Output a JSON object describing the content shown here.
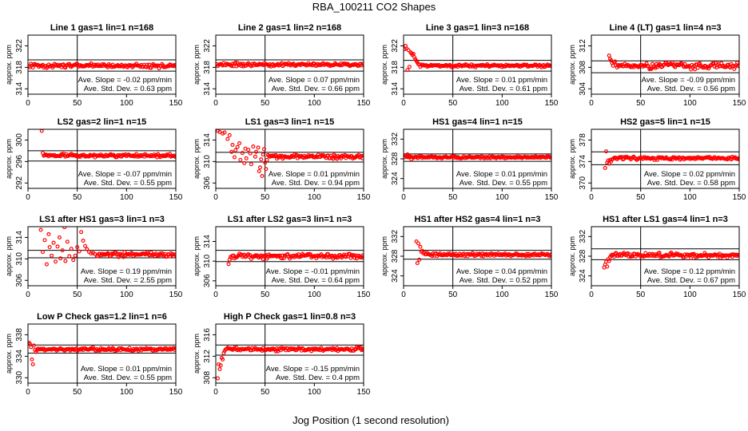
{
  "figure": {
    "title": "RBA_100211  CO2 Shapes",
    "xlabel": "Jog Position (1 second resolution)",
    "ylabel": "approx. ppm",
    "slope_label": "Ave. Slope =",
    "slope_unit": "ppm/min",
    "sd_label": "Ave. Std. Dev. =",
    "sd_unit": "ppm",
    "colors": {
      "points": "#ff0000",
      "axes": "#000000",
      "background": "#ffffff"
    }
  },
  "chart_data": [
    {
      "type": "scatter",
      "title": "Line 1 gas=1 lin=1 n=168",
      "xlim": [
        0,
        150
      ],
      "xticks": [
        0,
        50,
        100,
        150
      ],
      "ylim": [
        313,
        324
      ],
      "yticks": [
        314,
        318,
        322
      ],
      "hlines": [
        319.4,
        317.3
      ],
      "vline": 50,
      "series": {
        "name": "CO2",
        "baseline": 318.3,
        "noise": 0.28,
        "start_x": 1,
        "end_x": 150,
        "early": []
      },
      "slope": "-0.02",
      "sd": "0.63"
    },
    {
      "type": "scatter",
      "title": "Line 2 gas=1 lin=2 n=168",
      "xlim": [
        0,
        150
      ],
      "xticks": [
        0,
        50,
        100,
        150
      ],
      "ylim": [
        313,
        324
      ],
      "yticks": [
        314,
        318,
        322
      ],
      "hlines": [
        319.4,
        317.3
      ],
      "vline": 50,
      "series": {
        "name": "CO2",
        "baseline": 318.5,
        "noise": 0.25,
        "start_x": 1,
        "end_x": 150,
        "early": []
      },
      "slope": "0.07",
      "sd": "0.66"
    },
    {
      "type": "scatter",
      "title": "Line 3 gas=1 lin=3 n=168",
      "xlim": [
        0,
        150
      ],
      "xticks": [
        0,
        50,
        100,
        150
      ],
      "ylim": [
        313,
        324
      ],
      "yticks": [
        314,
        318,
        322
      ],
      "hlines": [
        319.3,
        317.3
      ],
      "vline": 50,
      "series": {
        "name": "CO2",
        "baseline": 318.3,
        "noise": 0.2,
        "start_x": 16,
        "end_x": 150,
        "early": [
          [
            1,
            321.4
          ],
          [
            2,
            322.0
          ],
          [
            3,
            321.5
          ],
          [
            4,
            317.5
          ],
          [
            5,
            321.2
          ],
          [
            6,
            318.1
          ],
          [
            7,
            320.8
          ],
          [
            8,
            320.6
          ],
          [
            9,
            320.3
          ],
          [
            10,
            320.5
          ],
          [
            11,
            319.9
          ],
          [
            12,
            319.5
          ],
          [
            13,
            319.2
          ],
          [
            14,
            318.9
          ],
          [
            15,
            318.6
          ]
        ]
      },
      "slope": "0.01",
      "sd": "0.61"
    },
    {
      "type": "scatter",
      "title": "Line 4 (LT) gas=1 lin=4 n=3",
      "xlim": [
        0,
        150
      ],
      "xticks": [
        0,
        50,
        100,
        150
      ],
      "ylim": [
        303,
        314
      ],
      "yticks": [
        304,
        308,
        312
      ],
      "hlines": [
        309.2,
        307.0
      ],
      "vline": 50,
      "series": {
        "name": "CO2",
        "baseline": 308.3,
        "noise": 0.4,
        "start_x": 26,
        "end_x": 150,
        "early": [
          [
            18,
            310.2
          ],
          [
            19,
            309.6
          ],
          [
            20,
            309.3
          ],
          [
            21,
            308.8
          ],
          [
            22,
            308.3
          ],
          [
            23,
            308.9
          ],
          [
            24,
            309.1
          ],
          [
            25,
            308.4
          ]
        ]
      },
      "slope": "-0.09",
      "sd": "0.56"
    },
    {
      "type": "scatter",
      "title": "LS2 gas=2 lin=1 n=15",
      "xlim": [
        0,
        150
      ],
      "xticks": [
        0,
        50,
        100,
        150
      ],
      "ylim": [
        291,
        302
      ],
      "yticks": [
        292,
        296,
        300
      ],
      "hlines": [
        298.0,
        296.1
      ],
      "vline": 50,
      "series": {
        "name": "CO2",
        "baseline": 297.1,
        "noise": 0.22,
        "start_x": 16,
        "end_x": 150,
        "early": [
          [
            14,
            301.7
          ],
          [
            15,
            297.6
          ]
        ]
      },
      "slope": "-0.07",
      "sd": "0.55"
    },
    {
      "type": "scatter",
      "title": "LS1 gas=3 lin=1 n=15",
      "xlim": [
        0,
        150
      ],
      "xticks": [
        0,
        50,
        100,
        150
      ],
      "ylim": [
        305,
        316
      ],
      "yticks": [
        306,
        310,
        314
      ],
      "hlines": [
        311.7,
        309.9
      ],
      "vline": 50,
      "series": {
        "name": "CO2",
        "baseline": 310.9,
        "noise": 0.28,
        "start_x": 56,
        "end_x": 150,
        "early": [
          [
            2,
            315.7
          ],
          [
            4,
            315.5
          ],
          [
            7,
            315.2
          ],
          [
            9,
            315.4
          ],
          [
            12,
            314.2
          ],
          [
            14,
            314.9
          ],
          [
            16,
            311.8
          ],
          [
            17,
            313.1
          ],
          [
            19,
            310.8
          ],
          [
            20,
            312.1
          ],
          [
            22,
            312.7
          ],
          [
            24,
            313.4
          ],
          [
            25,
            310.3
          ],
          [
            27,
            311.6
          ],
          [
            29,
            309.7
          ],
          [
            30,
            312.4
          ],
          [
            31,
            310.6
          ],
          [
            33,
            312.2
          ],
          [
            35,
            311.5
          ],
          [
            36,
            309.5
          ],
          [
            38,
            312.8
          ],
          [
            40,
            310.9
          ],
          [
            41,
            311.8
          ],
          [
            43,
            312.6
          ],
          [
            44,
            308.2
          ],
          [
            45,
            308.9
          ],
          [
            46,
            310.4
          ],
          [
            47,
            307.3
          ],
          [
            48,
            311.3
          ],
          [
            49,
            312.3
          ],
          [
            50,
            309.8
          ],
          [
            51,
            308.6
          ],
          [
            52,
            310.3
          ],
          [
            53,
            311.2
          ],
          [
            54,
            311.0
          ],
          [
            55,
            310.9
          ]
        ]
      },
      "slope": "0.01",
      "sd": "0.94"
    },
    {
      "type": "scatter",
      "title": "HS1 gas=4 lin=1 n=15",
      "xlim": [
        0,
        150
      ],
      "xticks": [
        0,
        50,
        100,
        150
      ],
      "ylim": [
        322,
        334
      ],
      "yticks": [
        324,
        328,
        332
      ],
      "hlines": [
        329.0,
        327.5
      ],
      "vline": 50,
      "series": {
        "name": "CO2",
        "baseline": 328.3,
        "noise": 0.18,
        "start_x": 1,
        "end_x": 150,
        "early": [
          [
            2,
            328.7
          ],
          [
            4,
            328.9
          ],
          [
            6,
            328.6
          ],
          [
            8,
            327.9
          ]
        ]
      },
      "slope": "0.01",
      "sd": "0.55"
    },
    {
      "type": "scatter",
      "title": "HS2 gas=5 lin=1 n=15",
      "xlim": [
        0,
        150
      ],
      "xticks": [
        0,
        50,
        100,
        150
      ],
      "ylim": [
        369,
        380
      ],
      "yticks": [
        370,
        374,
        378
      ],
      "hlines": [
        375.8,
        373.4
      ],
      "vline": 50,
      "series": {
        "name": "CO2",
        "baseline": 374.6,
        "noise": 0.22,
        "start_x": 22,
        "end_x": 150,
        "early": [
          [
            14,
            372.8
          ],
          [
            15,
            375.9
          ],
          [
            16,
            373.8
          ],
          [
            17,
            374.2
          ],
          [
            18,
            373.6
          ],
          [
            19,
            374.3
          ],
          [
            20,
            374.0
          ],
          [
            21,
            374.4
          ]
        ]
      },
      "slope": "0.02",
      "sd": "0.58"
    },
    {
      "type": "scatter",
      "title": "LS1 after HS1 gas=3 lin=1 n=3",
      "xlim": [
        0,
        150
      ],
      "xticks": [
        0,
        50,
        100,
        150
      ],
      "ylim": [
        305,
        316
      ],
      "yticks": [
        306,
        310,
        314
      ],
      "hlines": [
        311.6,
        310.2
      ],
      "vline": 50,
      "series": {
        "name": "CO2",
        "baseline": 310.8,
        "noise": 0.3,
        "start_x": 70,
        "end_x": 150,
        "early": [
          [
            13,
            315.4
          ],
          [
            15,
            311.3
          ],
          [
            17,
            313.5
          ],
          [
            19,
            309.0
          ],
          [
            21,
            314.6
          ],
          [
            22,
            312.2
          ],
          [
            24,
            310.6
          ],
          [
            26,
            313.0
          ],
          [
            28,
            309.5
          ],
          [
            30,
            312.3
          ],
          [
            32,
            314.0
          ],
          [
            33,
            310.1
          ],
          [
            35,
            311.6
          ],
          [
            37,
            315.9
          ],
          [
            38,
            309.6
          ],
          [
            40,
            313.2
          ],
          [
            42,
            310.5
          ],
          [
            44,
            311.9
          ],
          [
            46,
            309.8
          ],
          [
            48,
            310.6
          ],
          [
            50,
            312.2
          ],
          [
            52,
            311.4
          ],
          [
            54,
            315.0
          ],
          [
            56,
            313.4
          ],
          [
            58,
            312.4
          ],
          [
            60,
            311.8
          ],
          [
            62,
            311.3
          ],
          [
            64,
            311.0
          ],
          [
            66,
            311.1
          ],
          [
            68,
            310.9
          ]
        ]
      },
      "slope": "0.19",
      "sd": "2.55"
    },
    {
      "type": "scatter",
      "title": "LS1 after LS2 gas=3 lin=1 n=3",
      "xlim": [
        0,
        150
      ],
      "xticks": [
        0,
        50,
        100,
        150
      ],
      "ylim": [
        305,
        317
      ],
      "yticks": [
        306,
        310,
        314
      ],
      "hlines": [
        312.2,
        309.9
      ],
      "vline": 50,
      "series": {
        "name": "CO2",
        "baseline": 311.0,
        "noise": 0.35,
        "start_x": 15,
        "end_x": 150,
        "early": [
          [
            13,
            309.4
          ],
          [
            14,
            310.3
          ]
        ]
      },
      "slope": "-0.01",
      "sd": "0.64"
    },
    {
      "type": "scatter",
      "title": "HS1 after HS2 gas=4 lin=1 n=3",
      "xlim": [
        0,
        150
      ],
      "xticks": [
        0,
        50,
        100,
        150
      ],
      "ylim": [
        322,
        334
      ],
      "yticks": [
        324,
        328,
        332
      ],
      "hlines": [
        329.2,
        327.4
      ],
      "vline": 50,
      "series": {
        "name": "CO2",
        "baseline": 328.3,
        "noise": 0.25,
        "start_x": 22,
        "end_x": 150,
        "early": [
          [
            13,
            331.0
          ],
          [
            14,
            326.6
          ],
          [
            15,
            330.6
          ],
          [
            16,
            327.3
          ],
          [
            17,
            329.9
          ],
          [
            18,
            328.9
          ],
          [
            19,
            329.1
          ],
          [
            20,
            328.6
          ],
          [
            21,
            328.8
          ]
        ]
      },
      "slope": "0.04",
      "sd": "0.52"
    },
    {
      "type": "scatter",
      "title": "HS1 after LS1 gas=4 lin=1 n=3",
      "xlim": [
        0,
        150
      ],
      "xticks": [
        0,
        50,
        100,
        150
      ],
      "ylim": [
        322,
        334
      ],
      "yticks": [
        324,
        328,
        332
      ],
      "hlines": [
        329.5,
        327.3
      ],
      "vline": 50,
      "series": {
        "name": "CO2",
        "baseline": 328.2,
        "noise": 0.35,
        "start_x": 20,
        "end_x": 150,
        "early": [
          [
            13,
            325.7
          ],
          [
            14,
            326.3
          ],
          [
            15,
            326.9
          ],
          [
            16,
            325.9
          ],
          [
            17,
            327.4
          ],
          [
            18,
            327.0
          ],
          [
            19,
            327.8
          ]
        ]
      },
      "slope": "0.12",
      "sd": "0.67"
    },
    {
      "type": "scatter",
      "title": "Low P Check gas=1.2 lin=1 n=6",
      "xlim": [
        0,
        150
      ],
      "xticks": [
        0,
        50,
        100,
        150
      ],
      "ylim": [
        329,
        340
      ],
      "yticks": [
        330,
        334,
        338
      ],
      "hlines": [
        336.1,
        334.6
      ],
      "vline": 50,
      "series": {
        "name": "CO2",
        "baseline": 335.3,
        "noise": 0.22,
        "start_x": 10,
        "end_x": 150,
        "early": [
          [
            1,
            336.5
          ],
          [
            2,
            336.3
          ],
          [
            3,
            335.7
          ],
          [
            4,
            333.4
          ],
          [
            5,
            332.5
          ],
          [
            6,
            336.0
          ],
          [
            7,
            335.2
          ],
          [
            8,
            334.8
          ],
          [
            9,
            335.1
          ]
        ]
      },
      "slope": "0.01",
      "sd": "0.55"
    },
    {
      "type": "scatter",
      "title": "High P Check gas=1 lin=0.8 n=3",
      "xlim": [
        0,
        150
      ],
      "xticks": [
        0,
        50,
        100,
        150
      ],
      "ylim": [
        307,
        318
      ],
      "yticks": [
        308,
        312,
        316
      ],
      "hlines": [
        314.1,
        312.2
      ],
      "vline": 50,
      "series": {
        "name": "CO2",
        "baseline": 313.3,
        "noise": 0.25,
        "start_x": 10,
        "end_x": 150,
        "early": [
          [
            2,
            307.9
          ],
          [
            3,
            310.5
          ],
          [
            4,
            309.6
          ],
          [
            5,
            310.3
          ],
          [
            6,
            311.7
          ],
          [
            7,
            311.4
          ],
          [
            8,
            312.6
          ],
          [
            9,
            313.0
          ]
        ]
      },
      "slope": "-0.15",
      "sd": "0.4"
    }
  ]
}
